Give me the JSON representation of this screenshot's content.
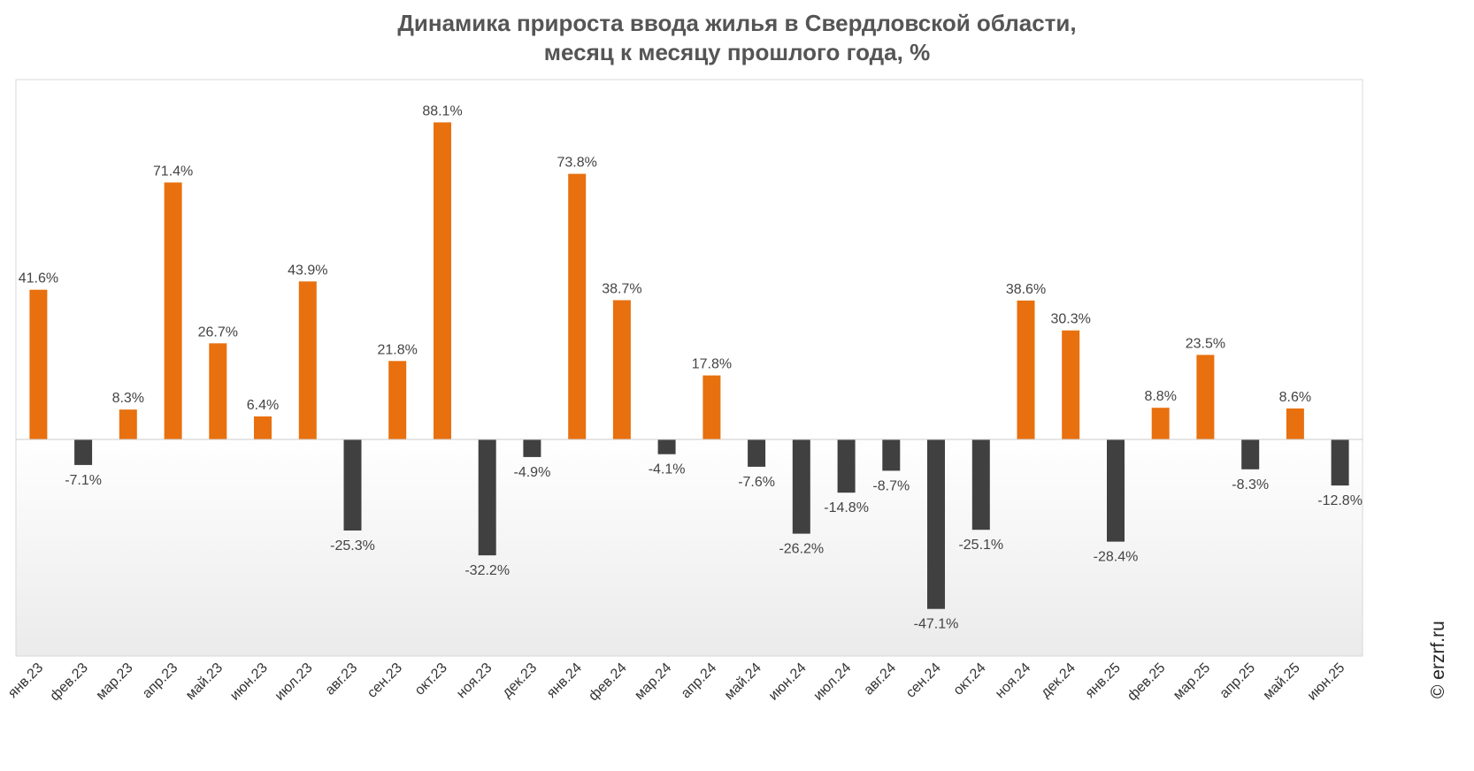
{
  "chart_data": {
    "type": "bar",
    "title_line1": "Динамика прироста ввода жилья в Свердловской области,",
    "title_line2": "месяц к месяцу прошлого года, %",
    "categories": [
      "янв.23",
      "фев.23",
      "мар.23",
      "апр.23",
      "май.23",
      "июн.23",
      "июл.23",
      "авг.23",
      "сен.23",
      "окт.23",
      "ноя.23",
      "дек.23",
      "янв.24",
      "фев.24",
      "мар.24",
      "апр.24",
      "май.24",
      "июн.24",
      "июл.24",
      "авг.24",
      "сен.24",
      "окт.24",
      "ноя.24",
      "дек.24",
      "янв.25",
      "фев.25",
      "мар.25",
      "апр.25",
      "май.25",
      "июн.25"
    ],
    "values": [
      41.6,
      -7.1,
      8.3,
      71.4,
      26.7,
      6.4,
      43.9,
      -25.3,
      21.8,
      88.1,
      -32.2,
      -4.9,
      73.8,
      38.7,
      -4.1,
      17.8,
      -7.6,
      -26.2,
      -14.8,
      -8.7,
      -47.1,
      -25.1,
      38.6,
      30.3,
      -28.4,
      8.8,
      23.5,
      -8.3,
      8.6,
      -12.8
    ],
    "value_labels": [
      "41.6%",
      "-7.1%",
      "8.3%",
      "71.4%",
      "26.7%",
      "6.4%",
      "43.9%",
      "-25.3%",
      "21.8%",
      "88.1%",
      "-32.2%",
      "-4.9%",
      "73.8%",
      "38.7%",
      "-4.1%",
      "17.8%",
      "-7.6%",
      "-26.2%",
      "-14.8%",
      "-8.7%",
      "-47.1%",
      "-25.1%",
      "38.6%",
      "30.3%",
      "-28.4%",
      "8.8%",
      "23.5%",
      "-8.3%",
      "8.6%",
      "-12.8%"
    ],
    "ylim": [
      -60,
      100
    ],
    "grid": false,
    "colors": {
      "positive": "#E8700E",
      "negative": "#404040",
      "label": "#444444",
      "axis": "#cccccc"
    }
  },
  "watermark": "© erzrf.ru"
}
